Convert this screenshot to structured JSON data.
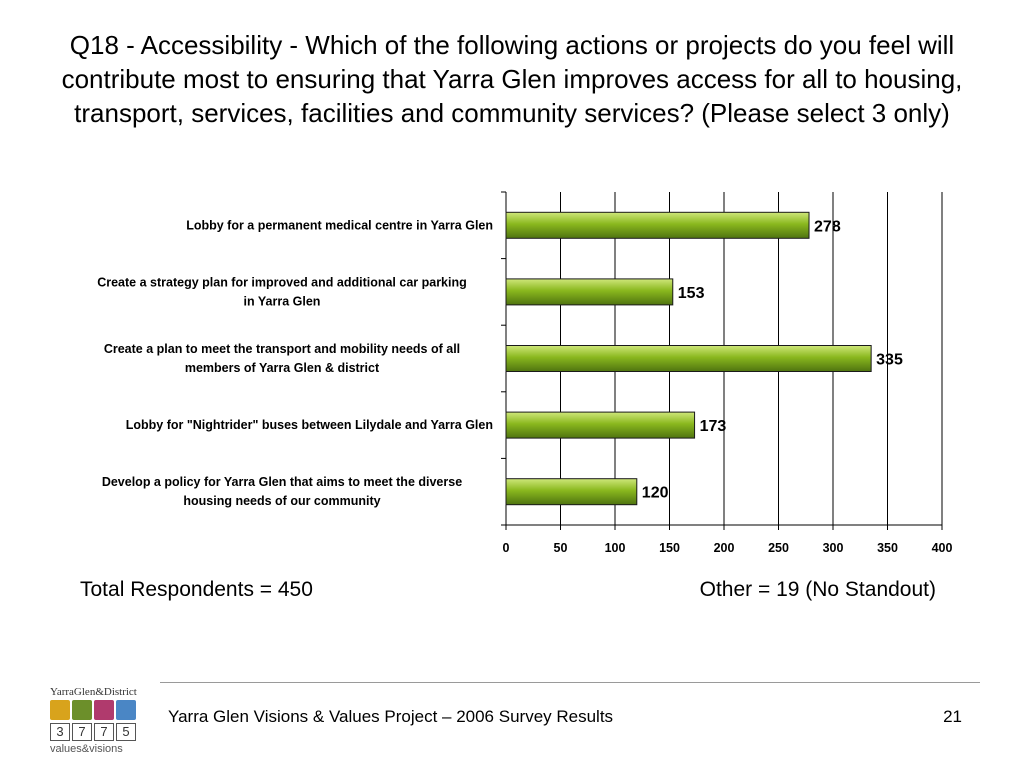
{
  "title": "Q18 - Accessibility - Which of the following actions or projects do you feel will contribute most to ensuring that Yarra Glen improves access for all to housing, transport, services, facilities and community services? (Please select 3 only)",
  "chart_data": {
    "type": "bar",
    "orientation": "horizontal",
    "categories": [
      [
        "Lobby for a permanent medical centre in Yarra Glen"
      ],
      [
        "Create a strategy plan for improved and additional car parking",
        "in Yarra Glen"
      ],
      [
        "Create a plan to meet the transport and mobility needs of all",
        "members of Yarra Glen & district"
      ],
      [
        "Lobby for \"Nightrider\" buses between Lilydale and Yarra Glen"
      ],
      [
        "Develop a policy for Yarra Glen that aims to meet the diverse",
        "housing needs of our community"
      ]
    ],
    "values": [
      278,
      153,
      335,
      173,
      120
    ],
    "xlim": [
      0,
      400
    ],
    "xticks": [
      0,
      50,
      100,
      150,
      200,
      250,
      300,
      350,
      400
    ],
    "grid": "vertical",
    "legend": "none",
    "bar_color": "#8ab81e"
  },
  "notes": {
    "left": "Total Respondents = 450",
    "right": "Other = 19 (No Standout)"
  },
  "footer": {
    "text": "Yarra Glen Visions & Values Project – 2006 Survey Results",
    "page": "21"
  },
  "logo": {
    "brand": "YarraGlen&District",
    "digits": [
      "3",
      "7",
      "7",
      "5"
    ],
    "tagline": "values&visions",
    "tile_colors": [
      "#d8a31c",
      "#6c8f2a",
      "#b03a6d",
      "#4a86c5"
    ]
  }
}
